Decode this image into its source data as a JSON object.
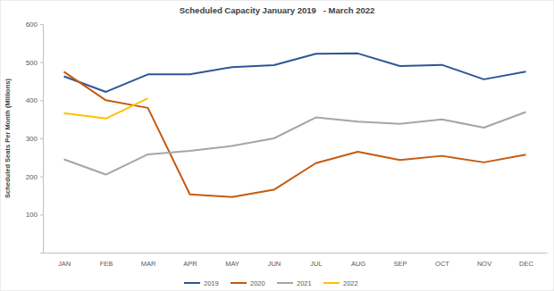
{
  "chart_data": {
    "type": "line",
    "title": "Scheduled Capacity January 2019   - March 2022",
    "y_label": "Scheduled Seats Per Month (Millions)",
    "categories": [
      "JAN",
      "FEB",
      "MAR",
      "APR",
      "MAY",
      "JUN",
      "JUL",
      "AUG",
      "SEP",
      "OCT",
      "NOV",
      "DEC"
    ],
    "series": [
      {
        "name": "2019",
        "color": "#2f5597",
        "values": [
          463,
          422,
          468,
          468,
          487,
          492,
          522,
          523,
          490,
          493,
          455,
          475
        ]
      },
      {
        "name": "2020",
        "color": "#c55a11",
        "values": [
          475,
          400,
          380,
          153,
          146,
          165,
          235,
          265,
          243,
          254,
          237,
          257
        ]
      },
      {
        "name": "2021",
        "color": "#a5a5a5",
        "values": [
          245,
          205,
          258,
          267,
          280,
          300,
          355,
          344,
          338,
          350,
          328,
          369
        ]
      },
      {
        "name": "2022",
        "color": "#ffc000",
        "values": [
          366,
          352,
          405,
          null,
          null,
          null,
          null,
          null,
          null,
          null,
          null,
          null
        ]
      }
    ],
    "ylim": [
      0,
      600
    ],
    "yticks": [
      100,
      200,
      300,
      400,
      500,
      600
    ],
    "grid": false,
    "legend": "bottom"
  }
}
